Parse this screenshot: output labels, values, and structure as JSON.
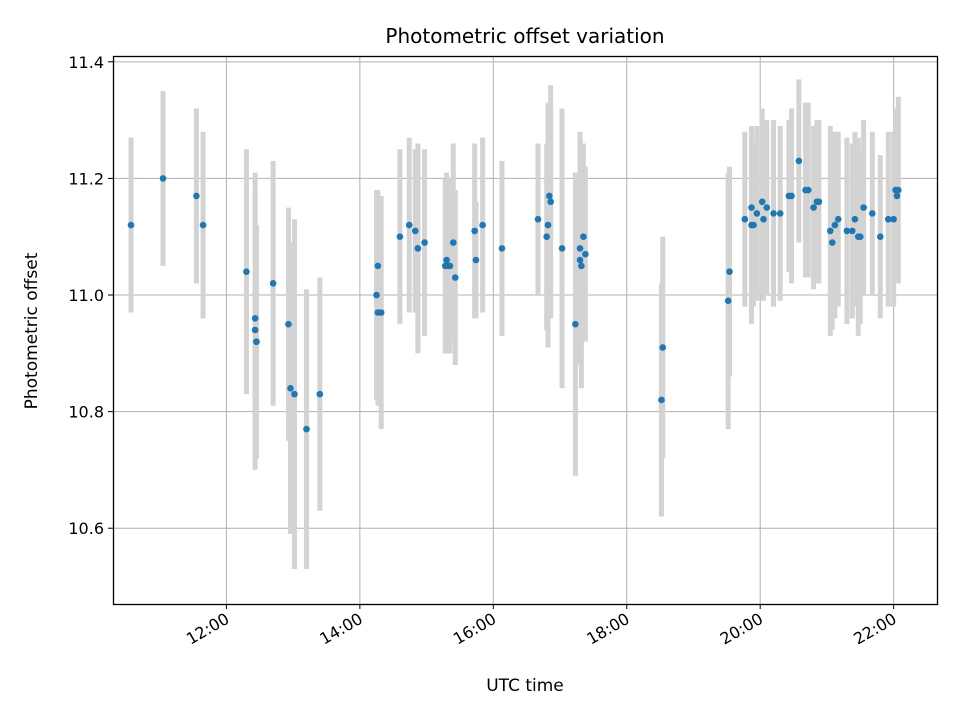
{
  "chart_data": {
    "type": "scatter",
    "title": "Photometric offset variation",
    "xlabel": "UTC time",
    "ylabel": "Photometric offset",
    "x_tick_labels": [
      "12:00",
      "14:00",
      "16:00",
      "18:00",
      "20:00",
      "22:00"
    ],
    "x_tick_hours": [
      12,
      14,
      16,
      18,
      20,
      22
    ],
    "y_tick_labels": [
      "10.6",
      "10.8",
      "11.0",
      "11.2",
      "11.4"
    ],
    "y_tick_values": [
      10.6,
      10.8,
      11.0,
      11.2,
      11.4
    ],
    "xlim_hours": [
      10.3,
      22.65
    ],
    "ylim": [
      10.47,
      11.41
    ],
    "grid": true,
    "point_color": "#1f77b4",
    "errorbar_color": "#d3d3d3",
    "series": [
      {
        "x_hours": [
          10.57,
          11.05,
          11.55,
          11.65,
          12.3,
          12.43,
          12.43,
          12.45,
          12.45,
          12.7,
          12.93,
          12.96,
          13.02,
          13.2,
          13.4,
          14.25,
          14.27,
          14.27,
          14.32,
          14.6,
          14.74,
          14.83,
          14.87,
          14.87,
          14.97,
          15.28,
          15.3,
          15.33,
          15.35,
          15.4,
          15.43,
          15.72,
          15.74,
          15.84,
          16.13,
          16.67,
          16.8,
          16.82,
          16.84,
          16.86,
          17.03,
          17.23,
          17.3,
          17.3,
          17.32,
          17.35,
          17.38,
          18.52,
          18.54,
          19.52,
          19.54,
          19.77,
          19.87,
          19.87,
          19.9,
          19.95,
          20.03,
          20.05,
          20.1,
          20.2,
          20.3,
          20.43,
          20.47,
          20.58,
          20.68,
          20.72,
          20.8,
          20.85,
          20.88,
          21.05,
          21.08,
          21.12,
          21.17,
          21.3,
          21.38,
          21.42,
          21.47,
          21.5,
          21.55,
          21.68,
          21.8,
          21.92,
          22.0,
          22.03,
          22.05,
          22.07
        ],
        "y": [
          11.12,
          11.2,
          11.17,
          11.12,
          11.04,
          10.96,
          10.94,
          10.92,
          10.92,
          11.02,
          10.95,
          10.84,
          10.83,
          10.77,
          10.83,
          11.0,
          10.97,
          11.05,
          10.97,
          11.1,
          11.12,
          11.11,
          11.08,
          11.08,
          11.09,
          11.05,
          11.06,
          11.05,
          11.05,
          11.09,
          11.03,
          11.11,
          11.06,
          11.12,
          11.08,
          11.13,
          11.1,
          11.12,
          11.17,
          11.16,
          11.08,
          10.95,
          11.08,
          11.06,
          11.05,
          11.1,
          11.07,
          10.82,
          10.91,
          10.99,
          11.04,
          11.13,
          11.15,
          11.12,
          11.12,
          11.14,
          11.16,
          11.13,
          11.15,
          11.14,
          11.14,
          11.17,
          11.17,
          11.23,
          11.18,
          11.18,
          11.15,
          11.16,
          11.16,
          11.11,
          11.09,
          11.12,
          11.13,
          11.11,
          11.11,
          11.13,
          11.1,
          11.1,
          11.15,
          11.14,
          11.1,
          11.13,
          11.13,
          11.18,
          11.17,
          11.18
        ],
        "yerr": [
          0.15,
          0.15,
          0.15,
          0.16,
          0.21,
          0.25,
          0.24,
          0.2,
          0.2,
          0.21,
          0.2,
          0.25,
          0.3,
          0.24,
          0.2,
          0.18,
          0.16,
          0.13,
          0.2,
          0.15,
          0.15,
          0.14,
          0.18,
          0.17,
          0.16,
          0.15,
          0.15,
          0.15,
          0.15,
          0.17,
          0.15,
          0.15,
          0.1,
          0.15,
          0.15,
          0.13,
          0.16,
          0.21,
          0.15,
          0.2,
          0.24,
          0.26,
          0.2,
          0.12,
          0.21,
          0.16,
          0.15,
          0.2,
          0.19,
          0.22,
          0.18,
          0.15,
          0.14,
          0.17,
          0.14,
          0.15,
          0.16,
          0.14,
          0.15,
          0.16,
          0.15,
          0.13,
          0.15,
          0.14,
          0.15,
          0.15,
          0.14,
          0.14,
          0.14,
          0.18,
          0.15,
          0.16,
          0.15,
          0.16,
          0.15,
          0.15,
          0.17,
          0.15,
          0.15,
          0.14,
          0.14,
          0.15,
          0.15,
          0.14,
          0.15,
          0.16
        ]
      }
    ]
  }
}
